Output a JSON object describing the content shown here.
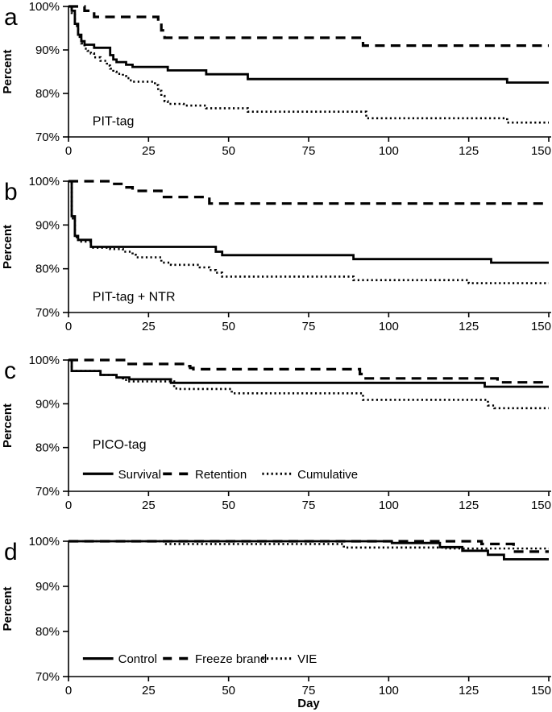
{
  "figure": {
    "ylabel": "Percent",
    "xlabel": "Day",
    "background": "#ffffff",
    "line_color": "#000000"
  },
  "chart_data": {
    "type": "line",
    "subtype": "step-survival-curves",
    "xlim": [
      0,
      150
    ],
    "ylim": [
      70,
      100
    ],
    "xticks": [
      0,
      25,
      50,
      75,
      100,
      125,
      150
    ],
    "yticks": [
      100,
      90,
      80,
      70
    ],
    "ytick_labels": [
      "100%",
      "90%",
      "80%",
      "70%"
    ],
    "xlabel": "Day",
    "ylabel": "Percent",
    "grid": false,
    "line_color": "#000000",
    "panels": [
      {
        "letter": "a",
        "caption": "PIT-tag",
        "caption_pos": {
          "day": 7.5,
          "pct": 72.7
        },
        "legend": null,
        "show_xlabel": false,
        "series": [
          {
            "name": "Survival",
            "style": "solid",
            "points": [
              [
                0,
                100
              ],
              [
                1,
                99
              ],
              [
                2,
                96
              ],
              [
                3,
                93.5
              ],
              [
                4,
                92
              ],
              [
                5,
                91.2
              ],
              [
                7,
                91.2
              ],
              [
                8,
                90.5
              ],
              [
                12,
                90.5
              ],
              [
                13,
                88.8
              ],
              [
                14,
                87.8
              ],
              [
                15,
                87.2
              ],
              [
                17,
                87.2
              ],
              [
                18,
                86.6
              ],
              [
                19,
                86.6
              ],
              [
                20,
                86.1
              ],
              [
                30,
                86.1
              ],
              [
                31,
                85.3
              ],
              [
                42,
                85.3
              ],
              [
                43,
                84.4
              ],
              [
                55,
                84.4
              ],
              [
                56,
                83.3
              ],
              [
                135,
                83.3
              ],
              [
                137,
                82.5
              ],
              [
                150,
                82.5
              ]
            ]
          },
          {
            "name": "Retention",
            "style": "dashed",
            "points": [
              [
                0,
                100
              ],
              [
                4,
                100
              ],
              [
                5,
                99
              ],
              [
                7,
                99
              ],
              [
                8,
                97.6
              ],
              [
                27,
                97.6
              ],
              [
                28,
                96.2
              ],
              [
                29,
                94.5
              ],
              [
                30,
                92.8
              ],
              [
                91,
                92.8
              ],
              [
                92,
                91
              ],
              [
                150,
                91
              ]
            ]
          },
          {
            "name": "Cumulative",
            "style": "dotted",
            "points": [
              [
                0,
                100
              ],
              [
                1,
                98.5
              ],
              [
                2,
                95.5
              ],
              [
                3,
                93
              ],
              [
                4,
                91.5
              ],
              [
                5,
                90.3
              ],
              [
                6,
                89.8
              ],
              [
                7,
                89.2
              ],
              [
                8,
                88.3
              ],
              [
                10,
                87.5
              ],
              [
                12,
                86.4
              ],
              [
                13,
                85.7
              ],
              [
                14,
                85
              ],
              [
                15,
                84.5
              ],
              [
                17,
                84
              ],
              [
                18,
                83.5
              ],
              [
                19,
                83
              ],
              [
                20,
                82.7
              ],
              [
                26,
                82.7
              ],
              [
                27,
                81.9
              ],
              [
                28,
                80.6
              ],
              [
                29,
                79.4
              ],
              [
                30,
                78.2
              ],
              [
                31,
                77.6
              ],
              [
                35,
                77.6
              ],
              [
                36,
                77.2
              ],
              [
                42,
                77.2
              ],
              [
                43,
                76.6
              ],
              [
                55,
                76.6
              ],
              [
                56,
                75.8
              ],
              [
                91,
                75.8
              ],
              [
                93,
                74.3
              ],
              [
                135,
                74.3
              ],
              [
                137,
                73.3
              ],
              [
                150,
                73.3
              ]
            ]
          }
        ]
      },
      {
        "letter": "b",
        "caption": "PIT-tag + NTR",
        "caption_pos": {
          "day": 7.5,
          "pct": 72.7
        },
        "legend": null,
        "show_xlabel": false,
        "series": [
          {
            "name": "Survival",
            "style": "solid",
            "points": [
              [
                0,
                100
              ],
              [
                1,
                92
              ],
              [
                2,
                87.5
              ],
              [
                3,
                86.6
              ],
              [
                6,
                86.6
              ],
              [
                7,
                85
              ],
              [
                45,
                85
              ],
              [
                46,
                83.9
              ],
              [
                47,
                83.9
              ],
              [
                48,
                83.1
              ],
              [
                88,
                83.1
              ],
              [
                89,
                82.2
              ],
              [
                130,
                82.2
              ],
              [
                132,
                81.4
              ],
              [
                150,
                81.4
              ]
            ]
          },
          {
            "name": "Retention",
            "style": "dashed",
            "points": [
              [
                0,
                100
              ],
              [
                12,
                100
              ],
              [
                13,
                99.4
              ],
              [
                16,
                99.4
              ],
              [
                17,
                98.6
              ],
              [
                19,
                98.6
              ],
              [
                20,
                97.8
              ],
              [
                27,
                97.8
              ],
              [
                29,
                96.4
              ],
              [
                42,
                96.4
              ],
              [
                44,
                94.9
              ],
              [
                150,
                94.9
              ]
            ]
          },
          {
            "name": "Cumulative",
            "style": "dotted",
            "points": [
              [
                0,
                100
              ],
              [
                1,
                91.5
              ],
              [
                2,
                87.2
              ],
              [
                3,
                86.2
              ],
              [
                6,
                86.2
              ],
              [
                7,
                84.8
              ],
              [
                12,
                84.8
              ],
              [
                13,
                84.5
              ],
              [
                16,
                84.5
              ],
              [
                17,
                83.9
              ],
              [
                19,
                83.9
              ],
              [
                20,
                83.2
              ],
              [
                21,
                82.6
              ],
              [
                27,
                82.6
              ],
              [
                29,
                81.4
              ],
              [
                31,
                81.4
              ],
              [
                32,
                80.9
              ],
              [
                40,
                80.9
              ],
              [
                41,
                80.3
              ],
              [
                43,
                80.3
              ],
              [
                44,
                79.7
              ],
              [
                46,
                79.1
              ],
              [
                48,
                78.2
              ],
              [
                88,
                78.2
              ],
              [
                89,
                77.4
              ],
              [
                123,
                77.4
              ],
              [
                125,
                76.7
              ],
              [
                150,
                76.7
              ]
            ]
          }
        ]
      },
      {
        "letter": "c",
        "caption": "PICO-tag",
        "caption_pos": {
          "day": 7.5,
          "pct": 79.8
        },
        "legend": {
          "pct": 74,
          "items": [
            {
              "label": "Survival",
              "style": "solid"
            },
            {
              "label": "Retention",
              "style": "dashed"
            },
            {
              "label": "Cumulative",
              "style": "dotted"
            }
          ]
        },
        "show_xlabel": false,
        "series": [
          {
            "name": "Survival",
            "style": "solid",
            "points": [
              [
                0,
                100
              ],
              [
                1,
                97.5
              ],
              [
                9,
                97.5
              ],
              [
                10,
                96.6
              ],
              [
                14,
                96.6
              ],
              [
                15,
                96
              ],
              [
                18,
                96
              ],
              [
                19,
                95.6
              ],
              [
                31,
                95.6
              ],
              [
                32,
                94.8
              ],
              [
                128,
                94.8
              ],
              [
                130,
                93.9
              ],
              [
                150,
                93.9
              ]
            ]
          },
          {
            "name": "Retention",
            "style": "dashed",
            "points": [
              [
                0,
                100
              ],
              [
                17,
                100
              ],
              [
                18,
                99.1
              ],
              [
                36,
                99.1
              ],
              [
                37,
                98.6
              ],
              [
                38,
                98.2
              ],
              [
                39,
                97.9
              ],
              [
                90,
                97.9
              ],
              [
                91,
                96.8
              ],
              [
                92,
                95.8
              ],
              [
                131,
                95.8
              ],
              [
                134,
                94.9
              ],
              [
                150,
                94.9
              ]
            ]
          },
          {
            "name": "Cumulative",
            "style": "dotted",
            "points": [
              [
                0,
                100
              ],
              [
                1,
                97.5
              ],
              [
                9,
                97.5
              ],
              [
                10,
                96.6
              ],
              [
                14,
                96.6
              ],
              [
                15,
                96
              ],
              [
                17,
                95.8
              ],
              [
                18,
                95.1
              ],
              [
                31,
                95.1
              ],
              [
                33,
                93.5
              ],
              [
                34,
                93.4
              ],
              [
                49,
                93.4
              ],
              [
                51,
                92.4
              ],
              [
                89,
                92.4
              ],
              [
                92,
                90.9
              ],
              [
                128,
                90.9
              ],
              [
                131,
                89.6
              ],
              [
                133,
                89
              ],
              [
                150,
                89
              ]
            ]
          }
        ]
      },
      {
        "letter": "d",
        "caption": null,
        "caption_pos": null,
        "legend": {
          "pct": 74,
          "items": [
            {
              "label": "Control",
              "style": "solid"
            },
            {
              "label": "Freeze brand",
              "style": "dashed"
            },
            {
              "label": "VIE",
              "style": "dotted"
            }
          ]
        },
        "show_xlabel": true,
        "series": [
          {
            "name": "Control",
            "style": "solid",
            "points": [
              [
                0,
                100
              ],
              [
                100,
                100
              ],
              [
                101,
                99.6
              ],
              [
                115,
                99.6
              ],
              [
                116,
                98.7
              ],
              [
                122,
                98.7
              ],
              [
                123,
                97.9
              ],
              [
                129,
                97.9
              ],
              [
                131,
                97
              ],
              [
                135,
                97
              ],
              [
                136,
                96
              ],
              [
                150,
                96
              ]
            ]
          },
          {
            "name": "Freeze brand",
            "style": "dashed",
            "points": [
              [
                0,
                100
              ],
              [
                127,
                100
              ],
              [
                129,
                99.4
              ],
              [
                137,
                99.4
              ],
              [
                139,
                97.7
              ],
              [
                150,
                97.7
              ]
            ]
          },
          {
            "name": "VIE",
            "style": "dotted",
            "points": [
              [
                0,
                100
              ],
              [
                28,
                100
              ],
              [
                30,
                99.4
              ],
              [
                84,
                99.4
              ],
              [
                86,
                98.6
              ],
              [
                116,
                98.6
              ],
              [
                118,
                98.4
              ],
              [
                150,
                98.4
              ]
            ]
          }
        ]
      }
    ]
  }
}
